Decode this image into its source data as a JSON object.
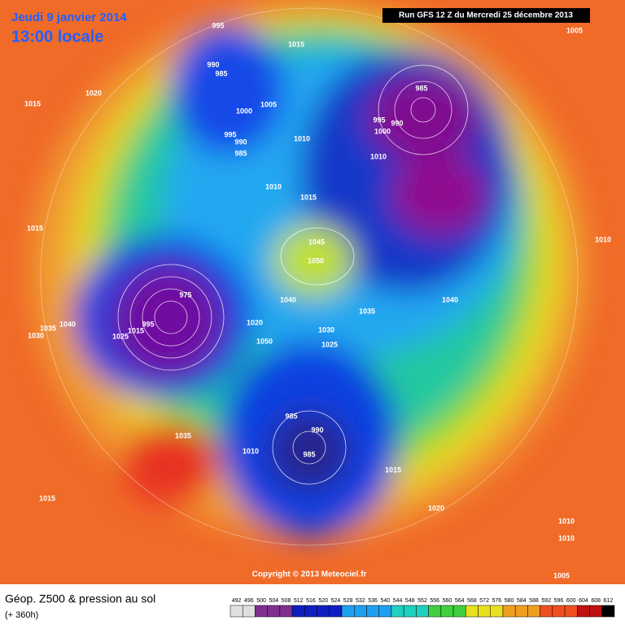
{
  "header": {
    "date": "Jeudi 9 janvier 2014",
    "time": "13:00 locale",
    "run": "Run GFS 12 Z du Mercredi 25 décembre 2013"
  },
  "map": {
    "copyright": "Copyright © 2013 Meteociel.fr",
    "isobar_labels": [
      1005,
      1015,
      1020,
      995,
      1015,
      990,
      985,
      1000,
      1005,
      995,
      990,
      985,
      1010,
      985,
      995,
      990,
      1000,
      1010,
      1010,
      1015,
      1015,
      1010,
      1045,
      1050,
      1040,
      1035,
      1040,
      975,
      995,
      1015,
      1025,
      1030,
      1035,
      1040,
      1020,
      1050,
      1030,
      1025,
      985,
      990,
      985,
      1015,
      1020,
      1035,
      1015,
      1010,
      1010,
      1005,
      1010
    ]
  },
  "footer": {
    "title": "Géop. Z500 & pression au sol",
    "lead": "(+ 360h)",
    "scale": [
      492,
      496,
      500,
      504,
      508,
      512,
      516,
      520,
      524,
      528,
      532,
      536,
      540,
      544,
      548,
      552,
      556,
      560,
      564,
      568,
      572,
      576,
      580,
      584,
      588,
      592,
      596,
      600,
      604,
      608,
      612
    ]
  }
}
